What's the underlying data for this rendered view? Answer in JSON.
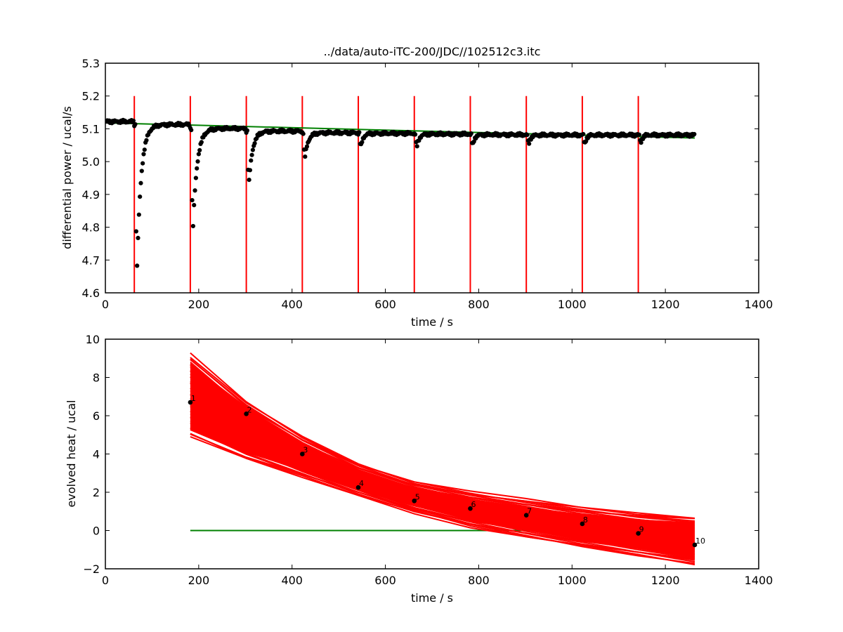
{
  "chart_data": [
    {
      "type": "scatter",
      "title": "../data/auto-iTC-200/JDC//102512c3.itc",
      "xlabel": "time / s",
      "ylabel": "differential power / ucal/s",
      "xlim": [
        0,
        1400
      ],
      "ylim": [
        4.6,
        5.3
      ],
      "xticks": [
        "0",
        "200",
        "400",
        "600",
        "800",
        "1000",
        "1200",
        "1400"
      ],
      "yticks": [
        "4.6",
        "4.7",
        "4.8",
        "4.9",
        "5.0",
        "5.1",
        "5.2",
        "5.3"
      ],
      "colors": {
        "points": "#000000",
        "baseline": "#008000",
        "injections": "#ff0000"
      },
      "baseline": {
        "x": [
          0,
          1263
        ],
        "y": [
          5.118,
          5.072
        ]
      },
      "injection_lines": {
        "times": [
          62,
          182,
          302,
          422,
          542,
          662,
          782,
          902,
          1022,
          1142
        ],
        "y_range": [
          4.6,
          5.2
        ]
      },
      "injection_peaks": [
        {
          "time": 62,
          "min": 4.63,
          "tau": 9
        },
        {
          "time": 182,
          "min": 4.77,
          "tau": 9
        },
        {
          "time": 302,
          "min": 4.92,
          "tau": 8
        },
        {
          "time": 422,
          "min": 5.005,
          "tau": 7
        },
        {
          "time": 542,
          "min": 5.04,
          "tau": 5
        },
        {
          "time": 662,
          "min": 5.04,
          "tau": 5
        },
        {
          "time": 782,
          "min": 5.045,
          "tau": 4
        },
        {
          "time": 902,
          "min": 5.05,
          "tau": 4
        },
        {
          "time": 1022,
          "min": 5.05,
          "tau": 4
        },
        {
          "time": 1142,
          "min": 5.055,
          "tau": 4
        }
      ],
      "plateaus": [
        {
          "start": 0,
          "end": 62,
          "level": 5.122
        },
        {
          "start": 62,
          "end": 182,
          "level": 5.113
        },
        {
          "start": 182,
          "end": 302,
          "level": 5.101
        },
        {
          "start": 302,
          "end": 422,
          "level": 5.093
        },
        {
          "start": 422,
          "end": 542,
          "level": 5.088
        },
        {
          "start": 542,
          "end": 662,
          "level": 5.086
        },
        {
          "start": 662,
          "end": 782,
          "level": 5.084
        },
        {
          "start": 782,
          "end": 902,
          "level": 5.082
        },
        {
          "start": 902,
          "end": 1022,
          "level": 5.081
        },
        {
          "start": 1022,
          "end": 1142,
          "level": 5.081
        },
        {
          "start": 1142,
          "end": 1263,
          "level": 5.081
        }
      ]
    },
    {
      "type": "line",
      "title": "",
      "xlabel": "time / s",
      "ylabel": "evolved heat / ucal",
      "xlim": [
        0,
        1400
      ],
      "ylim": [
        -2,
        10
      ],
      "xticks": [
        "0",
        "200",
        "400",
        "600",
        "800",
        "1000",
        "1200",
        "1400"
      ],
      "yticks": [
        "−2",
        "0",
        "2",
        "4",
        "6",
        "8",
        "10"
      ],
      "colors": {
        "points": "#000000",
        "zero_line": "#008000",
        "curves": "#ff0000"
      },
      "zero_line": 0,
      "x": [
        182,
        302,
        422,
        542,
        662,
        782,
        902,
        1022,
        1142,
        1263
      ],
      "observed": [
        6.7,
        6.1,
        4.0,
        2.25,
        1.55,
        1.15,
        0.8,
        0.35,
        -0.15,
        -0.75
      ],
      "point_labels": [
        "1",
        "2",
        "3",
        "4",
        "5",
        "6",
        "7",
        "8",
        "9",
        "10"
      ],
      "curve_band": {
        "upper": [
          9.2,
          6.7,
          4.9,
          3.5,
          2.55,
          2.0,
          1.6,
          1.2,
          0.9,
          0.7
        ],
        "lower": [
          4.9,
          3.7,
          2.8,
          1.85,
          0.95,
          0.2,
          -0.35,
          -0.85,
          -1.3,
          -1.75
        ],
        "center": [
          7.0,
          5.4,
          3.8,
          2.6,
          1.7,
          1.1,
          0.65,
          0.2,
          -0.2,
          -0.55
        ],
        "count": 40
      }
    }
  ]
}
